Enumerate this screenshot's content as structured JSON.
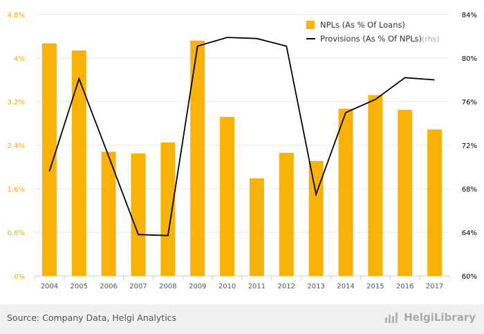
{
  "chart_data": {
    "type": "bar",
    "categories": [
      "2004",
      "2005",
      "2006",
      "2007",
      "2008",
      "2009",
      "2010",
      "2011",
      "2012",
      "2013",
      "2014",
      "2015",
      "2016",
      "2017"
    ],
    "series": [
      {
        "name": "NPLs (As % Of Loans)",
        "type": "bar",
        "axis": "left",
        "color": "#f9b208",
        "values": [
          4.27,
          4.14,
          2.28,
          2.25,
          2.45,
          4.32,
          2.92,
          1.79,
          2.26,
          2.11,
          3.07,
          3.32,
          3.05,
          2.69
        ]
      },
      {
        "name": "Provisions (As % Of NPLs)",
        "legend_suffix": "(rhs)",
        "type": "line",
        "axis": "right",
        "color": "#000000",
        "values": [
          69.6,
          78.1,
          71.0,
          63.8,
          63.7,
          81.1,
          81.9,
          81.8,
          81.1,
          67.5,
          75.0,
          76.2,
          78.2,
          78.0
        ]
      }
    ],
    "y_left": {
      "range": [
        0,
        4.8
      ],
      "ticks": [
        "0%",
        "0.8%",
        "1.6%",
        "2.4%",
        "3.2%",
        "4%",
        "4.8%"
      ],
      "color": "#f5a800"
    },
    "y_right": {
      "range": [
        60,
        84
      ],
      "ticks": [
        "60%",
        "64%",
        "68%",
        "72%",
        "76%",
        "80%",
        "84%"
      ],
      "color": "#000000"
    },
    "grid": true,
    "legend_position": "top-right"
  },
  "footer": {
    "source": "Source: Company Data, Helgi Analytics",
    "brand": "HelgiLibrary",
    "brand_icon": "bar-chart-logo-icon"
  }
}
